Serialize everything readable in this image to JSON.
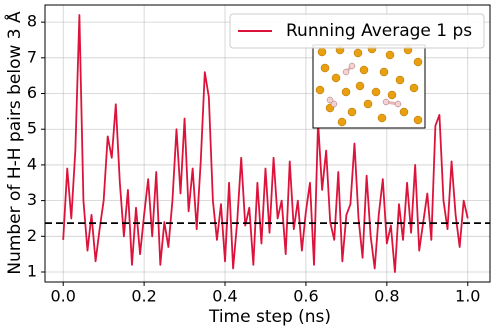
{
  "chart_data": {
    "type": "line",
    "xlabel": "Time step (ns)",
    "ylabel": "Number of H-H pairs below 3 Å",
    "x": [
      0.0,
      0.01,
      0.02,
      0.03,
      0.04,
      0.05,
      0.06,
      0.07,
      0.08,
      0.09,
      0.1,
      0.11,
      0.12,
      0.13,
      0.14,
      0.15,
      0.16,
      0.17,
      0.18,
      0.19,
      0.2,
      0.21,
      0.22,
      0.23,
      0.24,
      0.25,
      0.26,
      0.27,
      0.28,
      0.29,
      0.3,
      0.31,
      0.32,
      0.33,
      0.34,
      0.35,
      0.36,
      0.37,
      0.38,
      0.39,
      0.4,
      0.41,
      0.42,
      0.43,
      0.44,
      0.45,
      0.46,
      0.47,
      0.48,
      0.49,
      0.5,
      0.51,
      0.52,
      0.53,
      0.54,
      0.55,
      0.56,
      0.57,
      0.58,
      0.59,
      0.6,
      0.61,
      0.62,
      0.63,
      0.64,
      0.65,
      0.66,
      0.67,
      0.68,
      0.69,
      0.7,
      0.71,
      0.72,
      0.73,
      0.74,
      0.75,
      0.76,
      0.77,
      0.78,
      0.79,
      0.8,
      0.81,
      0.82,
      0.83,
      0.84,
      0.85,
      0.86,
      0.87,
      0.88,
      0.89,
      0.9,
      0.91,
      0.92,
      0.93,
      0.94,
      0.95,
      0.96,
      0.97,
      0.98,
      0.99,
      1.0
    ],
    "series": [
      {
        "name": "Running Average 1 ps",
        "color": "#dc143c",
        "values": [
          1.9,
          3.9,
          2.5,
          4.4,
          8.2,
          3.0,
          1.6,
          2.6,
          1.3,
          2.2,
          3.0,
          4.8,
          4.2,
          5.7,
          3.5,
          2.0,
          3.3,
          1.2,
          2.8,
          1.5,
          2.6,
          3.6,
          2.0,
          3.8,
          1.2,
          2.4,
          1.7,
          3.0,
          5.0,
          3.2,
          5.3,
          2.7,
          3.9,
          2.2,
          4.1,
          6.6,
          5.9,
          3.0,
          1.9,
          2.9,
          1.3,
          3.5,
          1.1,
          2.4,
          4.2,
          2.3,
          2.8,
          1.2,
          3.5,
          1.8,
          3.9,
          2.1,
          4.2,
          2.5,
          3.0,
          1.5,
          4.1,
          2.2,
          3.0,
          1.6,
          2.7,
          3.5,
          1.2,
          5.2,
          3.3,
          4.4,
          2.4,
          1.9,
          3.8,
          1.3,
          2.6,
          2.9,
          4.6,
          2.5,
          1.4,
          3.7,
          2.0,
          1.1,
          2.6,
          3.6,
          1.8,
          2.3,
          1.0,
          2.9,
          1.9,
          3.5,
          2.1,
          4.0,
          1.6,
          2.4,
          3.2,
          1.9,
          5.1,
          5.4,
          3.0,
          2.2,
          4.1,
          2.6,
          1.7,
          3.0,
          2.5
        ]
      }
    ],
    "reference_line": {
      "value": 2.37,
      "color": "#000000",
      "style": "dashed"
    },
    "xlim": [
      -0.045,
      1.055
    ],
    "xticks": [
      {
        "value": 0,
        "label": "0.0"
      },
      0.2,
      0.4,
      0.6,
      0.8,
      {
        "value": 1,
        "label": "1.0"
      }
    ],
    "ylim": [
      0.72,
      8.48
    ],
    "yticks": [
      1,
      2,
      3,
      4,
      5,
      6,
      7,
      8
    ],
    "grid": true,
    "legend": "upper right"
  }
}
